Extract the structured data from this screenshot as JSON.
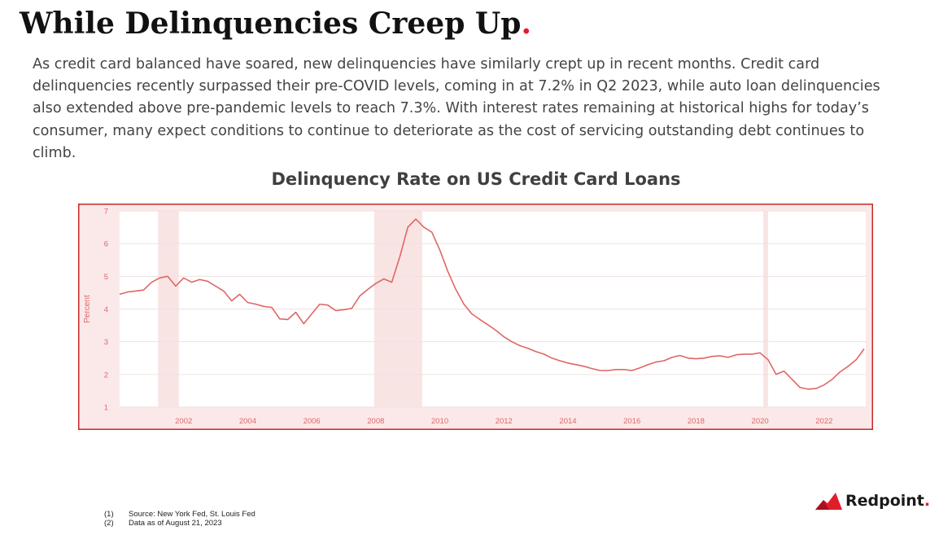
{
  "page": {
    "title": "While Delinquencies Creep Up",
    "title_dot": ".",
    "body": "As credit card balanced have soared, new delinquencies have similarly crept up in recent months. Credit card delinquencies recently surpassed their pre-COVID levels, coming in at 7.2% in Q2 2023, while auto loan delinquencies also extended above pre-pandemic levels to reach 7.3%. With interest rates remaining at historical highs for today’s consumer, many expect conditions to continue to deteriorate as the cost of servicing outstanding debt continues to climb.",
    "footnotes": [
      {
        "num": "(1)",
        "text": "Source: New York Fed, St. Louis Fed"
      },
      {
        "num": "(2)",
        "text": "Data as of August 21, 2023"
      }
    ],
    "logo": {
      "name": "Redpoint",
      "dot": ".",
      "icon": "redpoint-mountain-icon"
    }
  },
  "colors": {
    "accent": "#e11d2a",
    "line": "#e06666",
    "recession": "#f9e4e4",
    "frame": "#c62828"
  },
  "chart_data": {
    "type": "line",
    "title": "Delinquency Rate on US Credit Card Loans",
    "ylabel": "Percent",
    "xlabel": "",
    "xlim": [
      2000.0,
      2023.3
    ],
    "ylim": [
      1,
      7
    ],
    "yticks": [
      1,
      2,
      3,
      4,
      5,
      6,
      7
    ],
    "xticks": [
      2002,
      2004,
      2006,
      2008,
      2010,
      2012,
      2014,
      2016,
      2018,
      2020,
      2022
    ],
    "grid": true,
    "recessions": [
      [
        2001.2,
        2001.85
      ],
      [
        2007.95,
        2009.45
      ],
      [
        2020.1,
        2020.25
      ]
    ],
    "series": [
      {
        "x": [
          2000.0,
          2000.25,
          2000.5,
          2000.75,
          2001.0,
          2001.25,
          2001.5,
          2001.75,
          2002.0,
          2002.25,
          2002.5,
          2002.75,
          2003.0,
          2003.25,
          2003.5,
          2003.75,
          2004.0,
          2004.25,
          2004.5,
          2004.75,
          2005.0,
          2005.25,
          2005.5,
          2005.75,
          2006.0,
          2006.25,
          2006.5,
          2006.75,
          2007.0,
          2007.25,
          2007.5,
          2007.75,
          2008.0,
          2008.25,
          2008.5,
          2008.75,
          2009.0,
          2009.25,
          2009.5,
          2009.75,
          2010.0,
          2010.25,
          2010.5,
          2010.75,
          2011.0,
          2011.25,
          2011.5,
          2011.75,
          2012.0,
          2012.25,
          2012.5,
          2012.75,
          2013.0,
          2013.25,
          2013.5,
          2013.75,
          2014.0,
          2014.25,
          2014.5,
          2014.75,
          2015.0,
          2015.25,
          2015.5,
          2015.75,
          2016.0,
          2016.25,
          2016.5,
          2016.75,
          2017.0,
          2017.25,
          2017.5,
          2017.75,
          2018.0,
          2018.25,
          2018.5,
          2018.75,
          2019.0,
          2019.25,
          2019.5,
          2019.75,
          2020.0,
          2020.25,
          2020.5,
          2020.75,
          2021.0,
          2021.25,
          2021.5,
          2021.75,
          2022.0,
          2022.25,
          2022.5,
          2022.75,
          2023.0,
          2023.25
        ],
        "values": [
          4.45,
          4.52,
          4.55,
          4.58,
          4.82,
          4.95,
          5.0,
          4.7,
          4.95,
          4.82,
          4.9,
          4.85,
          4.7,
          4.55,
          4.25,
          4.45,
          4.2,
          4.15,
          4.08,
          4.05,
          3.7,
          3.68,
          3.9,
          3.55,
          3.85,
          4.15,
          4.12,
          3.95,
          3.98,
          4.02,
          4.4,
          4.6,
          4.78,
          4.92,
          4.82,
          5.6,
          6.5,
          6.75,
          6.5,
          6.35,
          5.8,
          5.15,
          4.6,
          4.15,
          3.85,
          3.68,
          3.52,
          3.35,
          3.15,
          3.0,
          2.88,
          2.8,
          2.7,
          2.62,
          2.5,
          2.42,
          2.35,
          2.3,
          2.25,
          2.18,
          2.12,
          2.12,
          2.15,
          2.15,
          2.12,
          2.2,
          2.3,
          2.38,
          2.42,
          2.52,
          2.58,
          2.5,
          2.48,
          2.5,
          2.55,
          2.57,
          2.52,
          2.6,
          2.62,
          2.62,
          2.66,
          2.45,
          2.0,
          2.1,
          1.85,
          1.6,
          1.55,
          1.57,
          1.68,
          1.85,
          2.08,
          2.25,
          2.45,
          2.78
        ]
      }
    ]
  }
}
